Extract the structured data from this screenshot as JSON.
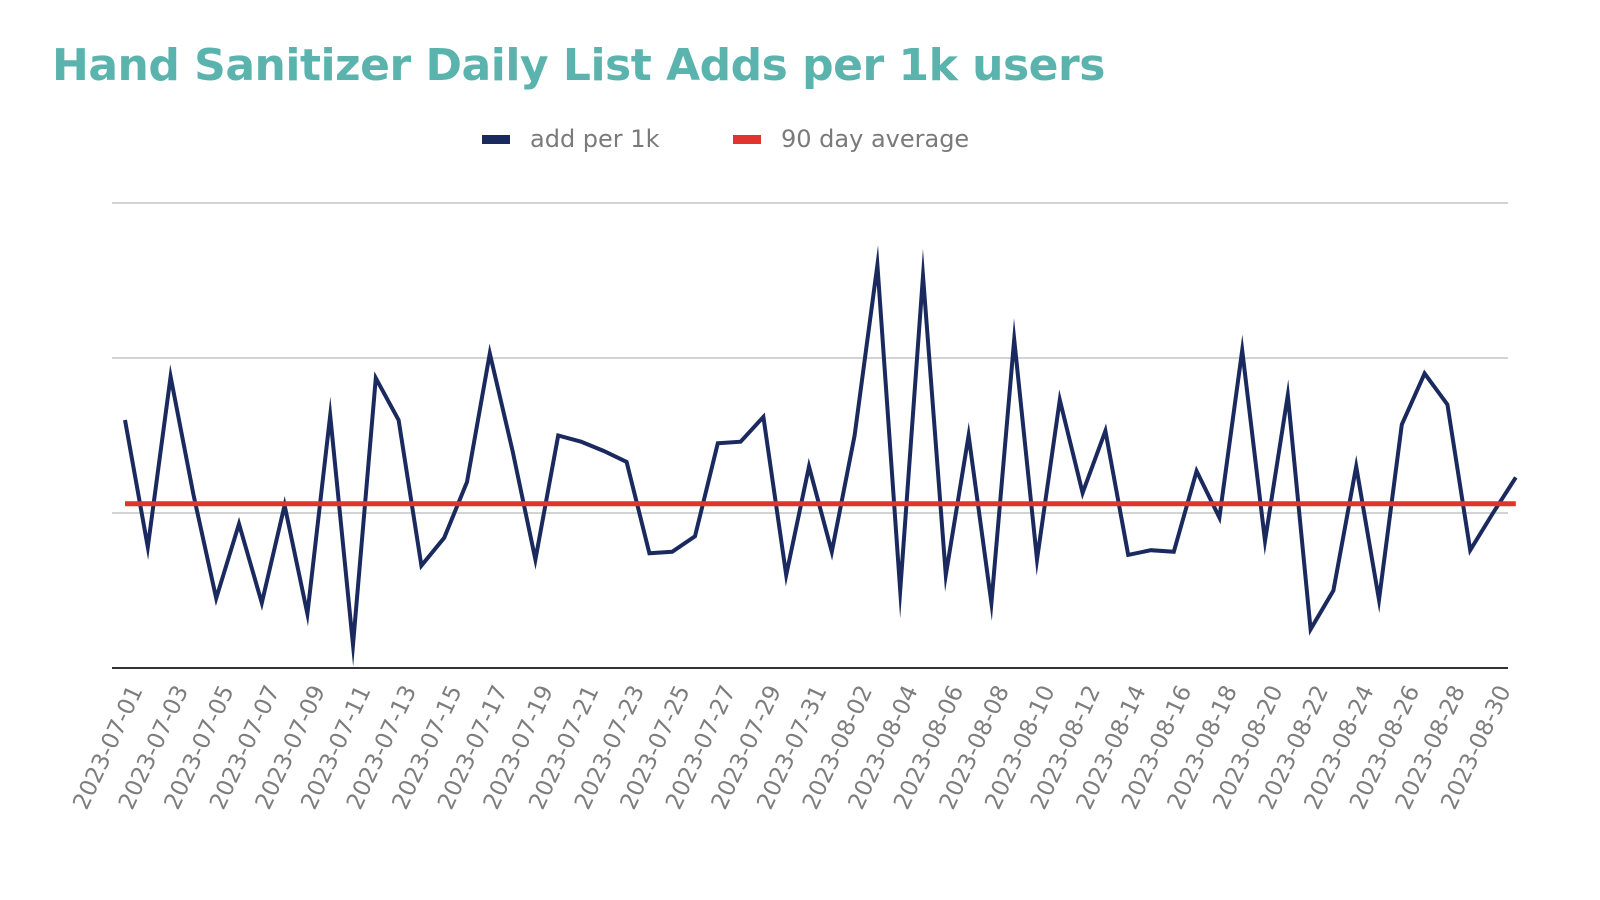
{
  "chart_data": {
    "type": "line",
    "title": "Hand Sanitizer Daily List Adds per 1k users",
    "xlabel": "",
    "ylabel": "",
    "legend_position": "top-center",
    "grid": true,
    "ylim": [
      0,
      3
    ],
    "yticks": [
      0,
      1,
      2,
      3
    ],
    "x": [
      "2023-07-01",
      "2023-07-02",
      "2023-07-03",
      "2023-07-04",
      "2023-07-05",
      "2023-07-06",
      "2023-07-07",
      "2023-07-08",
      "2023-07-09",
      "2023-07-10",
      "2023-07-11",
      "2023-07-12",
      "2023-07-13",
      "2023-07-14",
      "2023-07-15",
      "2023-07-16",
      "2023-07-17",
      "2023-07-18",
      "2023-07-19",
      "2023-07-20",
      "2023-07-21",
      "2023-07-22",
      "2023-07-23",
      "2023-07-24",
      "2023-07-25",
      "2023-07-26",
      "2023-07-27",
      "2023-07-28",
      "2023-07-29",
      "2023-07-30",
      "2023-07-31",
      "2023-08-01",
      "2023-08-02",
      "2023-08-03",
      "2023-08-04",
      "2023-08-05",
      "2023-08-06",
      "2023-08-07",
      "2023-08-08",
      "2023-08-09",
      "2023-08-10",
      "2023-08-11",
      "2023-08-12",
      "2023-08-13",
      "2023-08-14",
      "2023-08-15",
      "2023-08-16",
      "2023-08-17",
      "2023-08-18",
      "2023-08-19",
      "2023-08-20",
      "2023-08-21",
      "2023-08-22",
      "2023-08-23",
      "2023-08-24",
      "2023-08-25",
      "2023-08-26",
      "2023-08-27",
      "2023-08-28",
      "2023-08-29",
      "2023-08-30",
      "2023-08-31"
    ],
    "x_tick_labels": [
      "2023-07-01",
      "2023-07-03",
      "2023-07-05",
      "2023-07-07",
      "2023-07-09",
      "2023-07-11",
      "2023-07-13",
      "2023-07-15",
      "2023-07-17",
      "2023-07-19",
      "2023-07-21",
      "2023-07-23",
      "2023-07-25",
      "2023-07-27",
      "2023-07-29",
      "2023-07-31",
      "2023-08-02",
      "2023-08-04",
      "2023-08-06",
      "2023-08-08",
      "2023-08-10",
      "2023-08-12",
      "2023-08-14",
      "2023-08-16",
      "2023-08-18",
      "2023-08-20",
      "2023-08-22",
      "2023-08-24",
      "2023-08-26",
      "2023-08-28",
      "2023-08-30"
    ],
    "series": [
      {
        "name": "add per 1k",
        "color": "#1B2A5E",
        "values": [
          1.6,
          0.78,
          1.88,
          1.12,
          0.45,
          0.93,
          0.42,
          1.05,
          0.35,
          1.63,
          0.15,
          1.87,
          1.6,
          0.66,
          0.84,
          1.2,
          2.03,
          1.4,
          0.7,
          1.5,
          1.46,
          1.4,
          1.33,
          0.74,
          0.75,
          0.85,
          1.45,
          1.46,
          1.62,
          0.6,
          1.3,
          0.75,
          1.5,
          2.6,
          0.5,
          2.53,
          0.6,
          1.5,
          0.42,
          2.12,
          0.7,
          1.73,
          1.13,
          1.53,
          0.73,
          0.76,
          0.75,
          1.27,
          0.97,
          2.05,
          0.82,
          1.76,
          0.25,
          0.5,
          1.3,
          0.44,
          1.57,
          1.9,
          1.7,
          0.76,
          1.0,
          1.23
        ]
      },
      {
        "name": "90 day average",
        "color": "#E0342C",
        "values": [
          1.06,
          1.06,
          1.06,
          1.06,
          1.06,
          1.06,
          1.06,
          1.06,
          1.06,
          1.06,
          1.06,
          1.06,
          1.06,
          1.06,
          1.06,
          1.06,
          1.06,
          1.06,
          1.06,
          1.06,
          1.06,
          1.06,
          1.06,
          1.06,
          1.06,
          1.06,
          1.06,
          1.06,
          1.06,
          1.06,
          1.06,
          1.06,
          1.06,
          1.06,
          1.06,
          1.06,
          1.06,
          1.06,
          1.06,
          1.06,
          1.06,
          1.06,
          1.06,
          1.06,
          1.06,
          1.06,
          1.06,
          1.06,
          1.06,
          1.06,
          1.06,
          1.06,
          1.06,
          1.06,
          1.06,
          1.06,
          1.06,
          1.06,
          1.06,
          1.06,
          1.06,
          1.06
        ]
      }
    ],
    "colors": {
      "title": "#5BB3AE",
      "gridline": "#D3D3D3",
      "axis": "#333333",
      "tick_text": "#7D7D7D",
      "legend_text": "#7A7A7A"
    }
  }
}
